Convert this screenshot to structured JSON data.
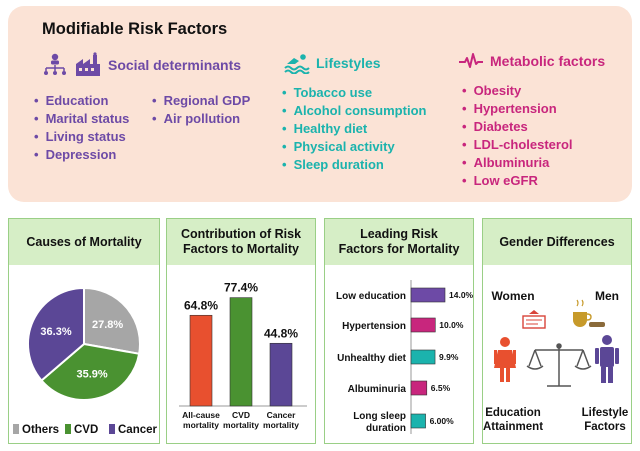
{
  "top": {
    "title": "Modifiable Risk Factors",
    "categories": {
      "social": {
        "label": "Social determinants",
        "color": "#6d4aa6",
        "icon": "people-network-icon",
        "icon2": "factory-icon",
        "items_col1": [
          "Education",
          "Marital status",
          "Living status",
          "Depression"
        ],
        "items_col2": [
          "Regional GDP",
          "Air pollution"
        ]
      },
      "lifestyle": {
        "label": "Lifestyles",
        "color": "#1bb3ad",
        "icon": "swimmer-icon",
        "items": [
          "Tobacco use",
          "Alcohol consumption",
          "Healthy diet",
          "Physical activity",
          "Sleep duration"
        ]
      },
      "metabolic": {
        "label": "Metabolic factors",
        "color": "#c8267d",
        "icon": "heartbeat-icon",
        "items": [
          "Obesity",
          "Hypertension",
          "Diabetes",
          "LDL-cholesterol",
          "Albuminuria",
          "Low eGFR"
        ]
      }
    }
  },
  "panels": {
    "causes": {
      "title": "Causes of Mortality"
    },
    "contribution": {
      "title_line1": "Contribution of Risk",
      "title_line2": "Factors to Mortality"
    },
    "leading": {
      "title_line1": "Leading Risk",
      "title_line2": "Factors for Mortality"
    },
    "gender": {
      "title": "Gender Differences",
      "women": "Women",
      "men": "Men",
      "women_factor_line1": "Education",
      "women_factor_line2": "Attainment",
      "men_factor_line1": "Lifestyle",
      "men_factor_line2": "Factors"
    }
  },
  "chart_data": [
    {
      "type": "pie",
      "slices": [
        {
          "label": "Others",
          "value": 27.8,
          "value_label": "27.8%",
          "color": "#a6a6a6"
        },
        {
          "label": "CVD",
          "value": 35.9,
          "value_label": "35.9%",
          "color": "#4a9231"
        },
        {
          "label": "Cancer",
          "value": 36.3,
          "value_label": "36.3%",
          "color": "#5b4796"
        }
      ],
      "legend": [
        "Others",
        "CVD",
        "Cancer"
      ],
      "legend_placement": "bottom"
    },
    {
      "type": "bar",
      "categories": [
        [
          "All-cause",
          "mortality"
        ],
        [
          "CVD",
          "mortality"
        ],
        [
          "Cancer",
          "mortality"
        ]
      ],
      "values": [
        64.8,
        77.4,
        44.8
      ],
      "value_labels": [
        "64.8%",
        "77.4%",
        "44.8%"
      ],
      "colors": [
        "#e8502f",
        "#4a9231",
        "#5b4796"
      ],
      "ylim": [
        0,
        80
      ]
    },
    {
      "type": "bar",
      "orientation": "horizontal",
      "categories": [
        [
          "Low education"
        ],
        [
          "Hypertension"
        ],
        [
          "Unhealthy diet"
        ],
        [
          "Albuminuria"
        ],
        [
          "Long sleep",
          "duration"
        ]
      ],
      "values": [
        14.0,
        10.0,
        9.9,
        6.5,
        6.0
      ],
      "value_labels": [
        "14.0%",
        "10.0%",
        "9.9%",
        "6.5%",
        "6.00%"
      ],
      "colors": [
        "#6d4aa6",
        "#c8267d",
        "#1bb3ad",
        "#c8267d",
        "#1bb3ad"
      ],
      "xlim": [
        0,
        14
      ]
    }
  ]
}
